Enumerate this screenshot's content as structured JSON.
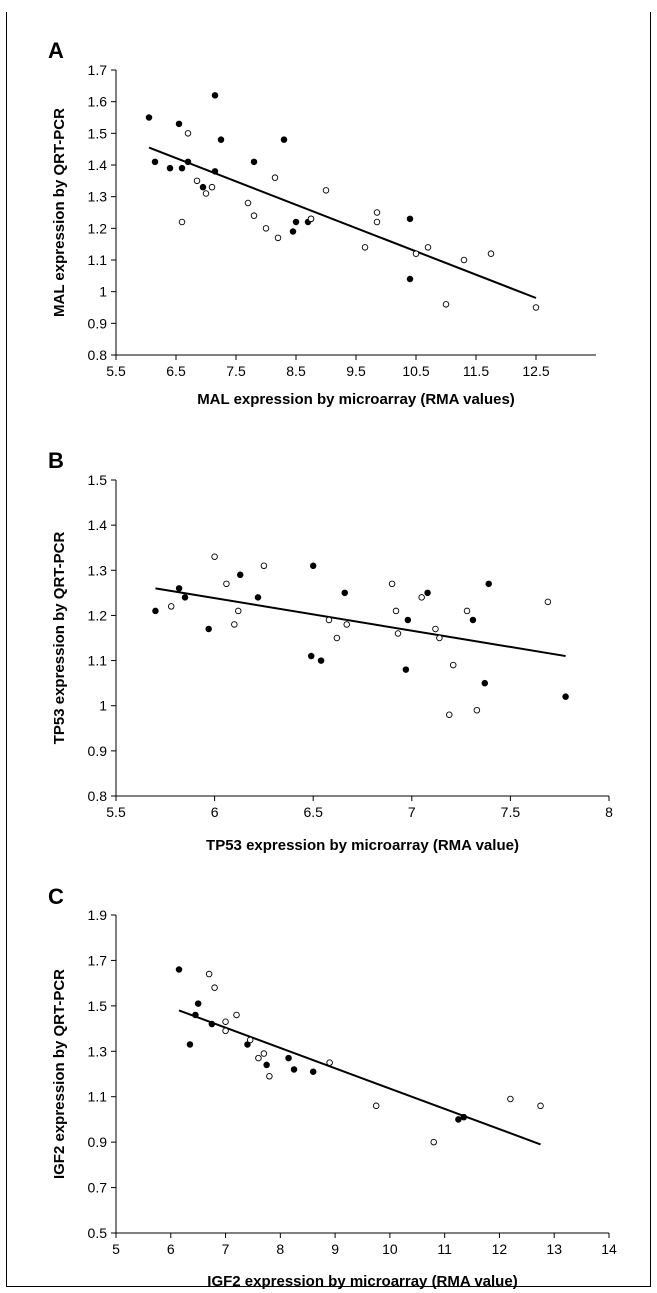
{
  "chart_data": [
    {
      "type": "scatter",
      "panel_label": "A",
      "xlabel": "MAL expression by microarray (RMA values)",
      "ylabel": "MAL expression by QRT-PCR",
      "xlim": [
        5.5,
        13.5
      ],
      "ylim": [
        0.8,
        1.7
      ],
      "x_ticks": [
        "5.5",
        "6.5",
        "7.5",
        "8.5",
        "9.5",
        "10.5",
        "11.5",
        "12.5"
      ],
      "y_ticks": [
        "0.8",
        "0.9",
        "1",
        "1.1",
        "1.2",
        "1.3",
        "1.4",
        "1.5",
        "1.6",
        "1.7"
      ],
      "grid": false,
      "marker_colors": {
        "filled": "#000000",
        "open": "#ffffff"
      },
      "series": [
        {
          "marker": "filled",
          "points": [
            [
              6.05,
              1.55
            ],
            [
              6.15,
              1.41
            ],
            [
              6.4,
              1.39
            ],
            [
              6.55,
              1.53
            ],
            [
              6.6,
              1.39
            ],
            [
              6.7,
              1.41
            ],
            [
              6.95,
              1.33
            ],
            [
              7.15,
              1.38
            ],
            [
              7.15,
              1.62
            ],
            [
              7.25,
              1.48
            ],
            [
              7.8,
              1.41
            ],
            [
              8.3,
              1.48
            ],
            [
              8.45,
              1.19
            ],
            [
              8.5,
              1.22
            ],
            [
              8.7,
              1.22
            ],
            [
              8.75,
              1.23
            ],
            [
              10.4,
              1.23
            ],
            [
              10.4,
              1.04
            ]
          ]
        },
        {
          "marker": "open",
          "points": [
            [
              6.6,
              1.22
            ],
            [
              6.7,
              1.5
            ],
            [
              6.85,
              1.35
            ],
            [
              7.0,
              1.31
            ],
            [
              7.1,
              1.33
            ],
            [
              7.7,
              1.28
            ],
            [
              7.8,
              1.24
            ],
            [
              8.0,
              1.2
            ],
            [
              8.15,
              1.36
            ],
            [
              8.2,
              1.17
            ],
            [
              8.75,
              1.23
            ],
            [
              9.0,
              1.32
            ],
            [
              9.65,
              1.14
            ],
            [
              9.85,
              1.22
            ],
            [
              9.85,
              1.25
            ],
            [
              10.5,
              1.12
            ],
            [
              10.7,
              1.14
            ],
            [
              11.0,
              0.96
            ],
            [
              11.3,
              1.1
            ],
            [
              11.75,
              1.12
            ],
            [
              12.5,
              0.95
            ]
          ]
        }
      ],
      "trendline": [
        [
          6.05,
          1.455
        ],
        [
          12.5,
          0.98
        ]
      ]
    },
    {
      "type": "scatter",
      "panel_label": "B",
      "xlabel": "TP53 expression by microarray (RMA value)",
      "ylabel": "TP53 expression by QRT-PCR",
      "xlim": [
        5.5,
        8
      ],
      "ylim": [
        0.8,
        1.5
      ],
      "x_ticks": [
        "5.5",
        "6",
        "6.5",
        "7",
        "7.5",
        "8"
      ],
      "y_ticks": [
        "0.8",
        "0.9",
        "1",
        "1.1",
        "1.2",
        "1.3",
        "1.4",
        "1.5"
      ],
      "grid": false,
      "marker_colors": {
        "filled": "#000000",
        "open": "#ffffff"
      },
      "series": [
        {
          "marker": "filled",
          "points": [
            [
              5.7,
              1.21
            ],
            [
              5.82,
              1.26
            ],
            [
              5.85,
              1.24
            ],
            [
              5.97,
              1.17
            ],
            [
              6.13,
              1.29
            ],
            [
              6.22,
              1.24
            ],
            [
              6.49,
              1.11
            ],
            [
              6.5,
              1.31
            ],
            [
              6.54,
              1.1
            ],
            [
              6.66,
              1.25
            ],
            [
              6.97,
              1.08
            ],
            [
              6.98,
              1.19
            ],
            [
              7.08,
              1.25
            ],
            [
              7.31,
              1.19
            ],
            [
              7.37,
              1.05
            ],
            [
              7.39,
              1.27
            ],
            [
              7.78,
              1.02
            ]
          ]
        },
        {
          "marker": "open",
          "points": [
            [
              5.78,
              1.22
            ],
            [
              6.0,
              1.33
            ],
            [
              6.06,
              1.27
            ],
            [
              6.1,
              1.18
            ],
            [
              6.12,
              1.21
            ],
            [
              6.25,
              1.31
            ],
            [
              6.58,
              1.19
            ],
            [
              6.62,
              1.15
            ],
            [
              6.67,
              1.18
            ],
            [
              6.9,
              1.27
            ],
            [
              6.92,
              1.21
            ],
            [
              6.93,
              1.16
            ],
            [
              7.05,
              1.24
            ],
            [
              7.12,
              1.17
            ],
            [
              7.14,
              1.15
            ],
            [
              7.19,
              0.98
            ],
            [
              7.21,
              1.09
            ],
            [
              7.28,
              1.21
            ],
            [
              7.33,
              0.99
            ],
            [
              7.69,
              1.23
            ]
          ]
        }
      ],
      "trendline": [
        [
          5.7,
          1.26
        ],
        [
          7.78,
          1.11
        ]
      ]
    },
    {
      "type": "scatter",
      "panel_label": "C",
      "xlabel": "IGF2 expression by microarray (RMA value)",
      "ylabel": "IGF2 expression by QRT-PCR",
      "xlim": [
        5,
        14
      ],
      "ylim": [
        0.5,
        1.9
      ],
      "x_ticks": [
        "5",
        "6",
        "7",
        "8",
        "9",
        "10",
        "11",
        "12",
        "13",
        "14"
      ],
      "y_ticks": [
        "0.5",
        "0.7",
        "0.9",
        "1.1",
        "1.3",
        "1.5",
        "1.7",
        "1.9"
      ],
      "grid": false,
      "marker_colors": {
        "filled": "#000000",
        "open": "#ffffff"
      },
      "series": [
        {
          "marker": "filled",
          "points": [
            [
              6.15,
              1.66
            ],
            [
              6.35,
              1.33
            ],
            [
              6.45,
              1.46
            ],
            [
              6.5,
              1.51
            ],
            [
              6.75,
              1.42
            ],
            [
              7.4,
              1.33
            ],
            [
              7.75,
              1.24
            ],
            [
              8.15,
              1.27
            ],
            [
              8.25,
              1.22
            ],
            [
              8.6,
              1.21
            ],
            [
              11.25,
              1.0
            ],
            [
              11.35,
              1.01
            ]
          ]
        },
        {
          "marker": "open",
          "points": [
            [
              6.7,
              1.64
            ],
            [
              6.8,
              1.58
            ],
            [
              7.0,
              1.39
            ],
            [
              7.0,
              1.43
            ],
            [
              7.2,
              1.46
            ],
            [
              7.45,
              1.35
            ],
            [
              7.6,
              1.27
            ],
            [
              7.7,
              1.29
            ],
            [
              7.8,
              1.19
            ],
            [
              8.9,
              1.25
            ],
            [
              9.75,
              1.06
            ],
            [
              10.8,
              0.9
            ],
            [
              12.2,
              1.09
            ],
            [
              12.75,
              1.06
            ]
          ]
        }
      ],
      "trendline": [
        [
          6.15,
          1.48
        ],
        [
          12.75,
          0.89
        ]
      ]
    }
  ]
}
